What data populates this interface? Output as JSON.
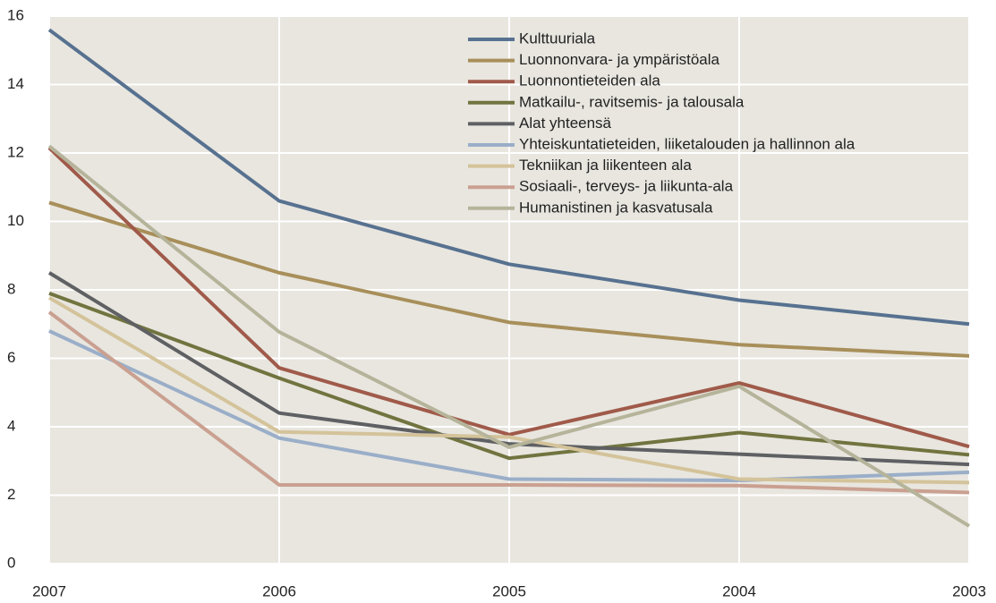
{
  "chart_data": {
    "type": "line",
    "categories": [
      "2007",
      "2006",
      "2005",
      "2004",
      "2003"
    ],
    "series": [
      {
        "name": "Kulttuuriala",
        "color": "#577190",
        "values": [
          15.6,
          10.6,
          8.75,
          7.7,
          7.0
        ]
      },
      {
        "name": "Luonnonvara- ja ympäristöala",
        "color": "#a88f5a",
        "values": [
          10.55,
          8.5,
          7.05,
          6.4,
          6.07
        ]
      },
      {
        "name": "Luonnontieteiden ala",
        "color": "#a05a4a",
        "values": [
          12.15,
          5.72,
          3.77,
          5.28,
          3.42
        ]
      },
      {
        "name": "Matkailu-, ravitsemis- ja talousala",
        "color": "#71743f",
        "values": [
          7.9,
          5.42,
          3.08,
          3.83,
          3.18
        ]
      },
      {
        "name": "Alat yhteensä",
        "color": "#5f6063",
        "values": [
          8.5,
          4.4,
          3.5,
          3.2,
          2.9
        ]
      },
      {
        "name": "Yhteiskuntatieteiden, liiketalouden ja hallinnon ala",
        "color": "#9aaec8",
        "values": [
          6.8,
          3.67,
          2.47,
          2.43,
          2.67
        ]
      },
      {
        "name": "Tekniikan ja liikenteen ala",
        "color": "#d4c39a",
        "values": [
          7.77,
          3.85,
          3.7,
          2.47,
          2.37
        ]
      },
      {
        "name": "Sosiaali-, terveys- ja liikunta-ala",
        "color": "#caa091",
        "values": [
          7.35,
          2.3,
          2.3,
          2.28,
          2.08
        ]
      },
      {
        "name": "Humanistinen ja kasvatusala",
        "color": "#b5b49a",
        "values": [
          12.2,
          6.77,
          3.4,
          5.18,
          1.1
        ]
      }
    ],
    "ylim": [
      0,
      16
    ],
    "yticks": [
      0,
      2,
      4,
      6,
      8,
      10,
      12,
      14,
      16
    ],
    "grid": true,
    "legend": "upper center"
  }
}
